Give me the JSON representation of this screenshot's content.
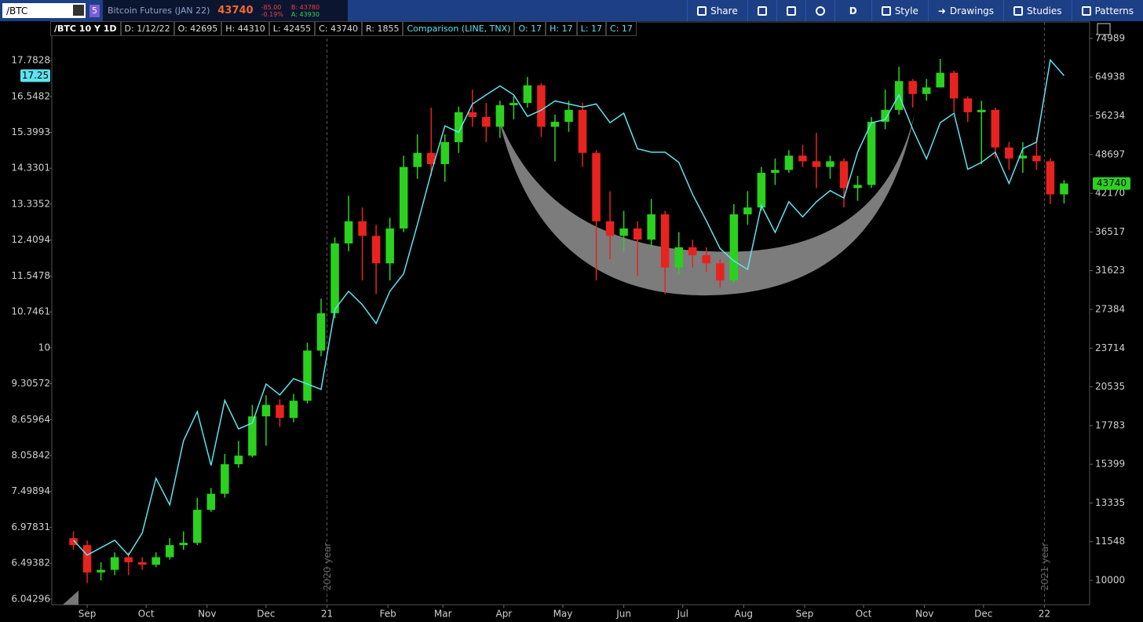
{
  "toolbar": {
    "symbol": "/BTC",
    "badge": "5",
    "description": "Bitcoin Futures (JAN 22)",
    "last": "43740",
    "change": "-85.00",
    "change_pct": "-0.19%",
    "bid": "B: 43780",
    "ask": "A: 43930",
    "buttons": [
      "Share",
      "D",
      "Style",
      "Drawings",
      "Studies",
      "Patterns"
    ]
  },
  "info_bar": {
    "items": [
      "/BTC 10 Y 1D",
      "D: 1/12/22",
      "O: 42695",
      "H: 44310",
      "L: 42455",
      "C: 43740",
      "R: 1855"
    ],
    "comparison": [
      "Comparison (LINE, TNX)",
      "O: 17",
      "H: 17",
      "L: 17",
      "C: 17"
    ]
  },
  "chart_data": {
    "type": "candlestick",
    "log_scale": true,
    "grid": false,
    "xlim": [
      13,
      541
    ],
    "xticks": [
      {
        "value": 31,
        "label": "Sep"
      },
      {
        "value": 61,
        "label": "Oct"
      },
      {
        "value": 92,
        "label": "Nov"
      },
      {
        "value": 122,
        "label": "Dec"
      },
      {
        "value": 153,
        "label": "21"
      },
      {
        "value": 184,
        "label": "Feb"
      },
      {
        "value": 212,
        "label": "Mar"
      },
      {
        "value": 243,
        "label": "Apr"
      },
      {
        "value": 273,
        "label": "May"
      },
      {
        "value": 304,
        "label": "Jun"
      },
      {
        "value": 334,
        "label": "Jul"
      },
      {
        "value": 365,
        "label": "Aug"
      },
      {
        "value": 396,
        "label": "Sep"
      },
      {
        "value": 426,
        "label": "Oct"
      },
      {
        "value": 457,
        "label": "Nov"
      },
      {
        "value": 487,
        "label": "Dec"
      },
      {
        "value": 518,
        "label": "22"
      }
    ],
    "ylim": [
      9135,
      79720
    ],
    "yticks": [
      74989,
      64938,
      56234,
      48697,
      42170,
      36517,
      31623,
      27384,
      23714,
      20535,
      17783,
      15399,
      13335,
      11548,
      10000
    ],
    "y2lim": [
      5.976,
      19.21
    ],
    "y2ticks": [
      17.7828,
      16.5482,
      15.3993,
      14.3301,
      13.3352,
      12.4094,
      11.5478,
      10.7461,
      10,
      9.30572,
      8.65964,
      8.05842,
      7.49894,
      6.97831,
      6.49382,
      6.04296
    ],
    "x": [
      24,
      31,
      38,
      45,
      52,
      59,
      66,
      73,
      80,
      87,
      94,
      101,
      108,
      115,
      122,
      129,
      136,
      143,
      150,
      157,
      164,
      171,
      178,
      185,
      192,
      199,
      206,
      213,
      220,
      227,
      234,
      241,
      248,
      255,
      262,
      269,
      276,
      283,
      290,
      297,
      304,
      311,
      318,
      325,
      332,
      339,
      346,
      353,
      360,
      367,
      374,
      381,
      388,
      395,
      402,
      409,
      416,
      423,
      430,
      437,
      444,
      451,
      458,
      465,
      472,
      479,
      486,
      493,
      500,
      507,
      514,
      521,
      528
    ],
    "series": [
      {
        "type": "candlestick",
        "up_color": "#2bd11f",
        "down_color": "#e8231f",
        "open": [
          11700,
          11400,
          10300,
          10400,
          10900,
          10700,
          10600,
          10900,
          11400,
          11500,
          13000,
          13800,
          15400,
          15900,
          18400,
          19200,
          18300,
          19500,
          23500,
          27000,
          35000,
          38000,
          36000,
          32500,
          37000,
          46500,
          49000,
          47000,
          51000,
          57000,
          56000,
          54000,
          58500,
          59000,
          63000,
          54000,
          55000,
          57500,
          49000,
          38000,
          36000,
          37000,
          35500,
          39000,
          32000,
          34500,
          33500,
          32500,
          30500,
          39000,
          40000,
          45500,
          46000,
          48500,
          47500,
          46500,
          47500,
          43000,
          43500,
          55000,
          57500,
          64000,
          61000,
          62500,
          66000,
          60000,
          57000,
          57500,
          50000,
          48000,
          48500,
          47500,
          42000
        ],
        "high": [
          12000,
          11600,
          10700,
          11100,
          11100,
          10900,
          11100,
          11700,
          12000,
          13600,
          14100,
          16000,
          16800,
          19200,
          19900,
          19600,
          20000,
          24200,
          28500,
          35800,
          41800,
          40000,
          37500,
          38500,
          48500,
          52500,
          58000,
          52500,
          58200,
          62000,
          59000,
          59500,
          60500,
          65000,
          63500,
          56500,
          59500,
          59000,
          49500,
          42500,
          39500,
          38000,
          41300,
          39500,
          36500,
          35500,
          34500,
          33000,
          40500,
          42500,
          46500,
          48000,
          49500,
          50500,
          52800,
          48500,
          48000,
          45000,
          56000,
          62000,
          67500,
          64500,
          64500,
          69500,
          66500,
          60500,
          59500,
          58000,
          51000,
          51000,
          52000,
          48000,
          44310
        ],
        "low": [
          11200,
          9900,
          10000,
          10200,
          10200,
          10400,
          10500,
          10800,
          11200,
          11400,
          12900,
          13600,
          15200,
          15800,
          16500,
          17700,
          18000,
          19300,
          23000,
          26500,
          34000,
          30500,
          29000,
          30500,
          36500,
          44500,
          45000,
          44000,
          49000,
          54000,
          51000,
          51800,
          55500,
          58000,
          52000,
          47500,
          53000,
          46500,
          30500,
          33000,
          34000,
          31000,
          34500,
          29000,
          31200,
          32000,
          31500,
          29700,
          30200,
          37500,
          39500,
          43500,
          45500,
          46500,
          43000,
          44500,
          40000,
          41000,
          43000,
          53500,
          56500,
          58000,
          59500,
          62500,
          57000,
          55000,
          47000,
          48000,
          46000,
          45500,
          46000,
          40500,
          40600
        ],
        "close": [
          11400,
          10300,
          10400,
          10900,
          10700,
          10600,
          10900,
          11400,
          11500,
          13000,
          13800,
          15400,
          15900,
          18400,
          19200,
          18300,
          19500,
          23500,
          27000,
          35000,
          38000,
          36000,
          32500,
          37000,
          46500,
          49000,
          47000,
          51000,
          57000,
          56000,
          54000,
          58500,
          59000,
          63000,
          54000,
          55000,
          57500,
          49000,
          38000,
          36000,
          37000,
          35500,
          39000,
          32000,
          34500,
          33500,
          32500,
          30500,
          39000,
          40000,
          45500,
          46000,
          48500,
          47500,
          46500,
          47500,
          43000,
          43500,
          55000,
          57500,
          64000,
          61000,
          62500,
          66000,
          60000,
          57000,
          57500,
          50000,
          48000,
          48500,
          47500,
          42000,
          43740
        ]
      },
      {
        "type": "line",
        "axis": "y2",
        "color": "#5fe3f0",
        "values": [
          6.8,
          6.6,
          6.7,
          6.8,
          6.6,
          6.9,
          7.7,
          7.3,
          8.3,
          8.8,
          7.9,
          9.0,
          8.5,
          8.6,
          9.3,
          9.1,
          9.4,
          9.3,
          9.2,
          10.8,
          11.2,
          10.9,
          10.5,
          11.2,
          11.6,
          12.8,
          14.2,
          15.6,
          15.4,
          16.3,
          16.6,
          16.9,
          16.6,
          15.9,
          16.1,
          16.4,
          16.3,
          16.2,
          16.3,
          15.7,
          16.0,
          14.9,
          14.8,
          14.8,
          14.5,
          13.6,
          12.9,
          12.2,
          11.9,
          11.7,
          13.3,
          12.6,
          13.4,
          13.0,
          13.4,
          13.7,
          13.5,
          14.8,
          15.7,
          15.8,
          16.6,
          15.5,
          14.6,
          15.7,
          16.0,
          14.3,
          14.5,
          14.8,
          13.9,
          14.9,
          15.1,
          17.8,
          17.25
        ]
      }
    ],
    "price_badge": 43740,
    "compare_badge": 17.25,
    "annotations": [
      {
        "text": "2020 year",
        "x": 153
      },
      {
        "text": "2021 year",
        "x": 518
      }
    ]
  }
}
